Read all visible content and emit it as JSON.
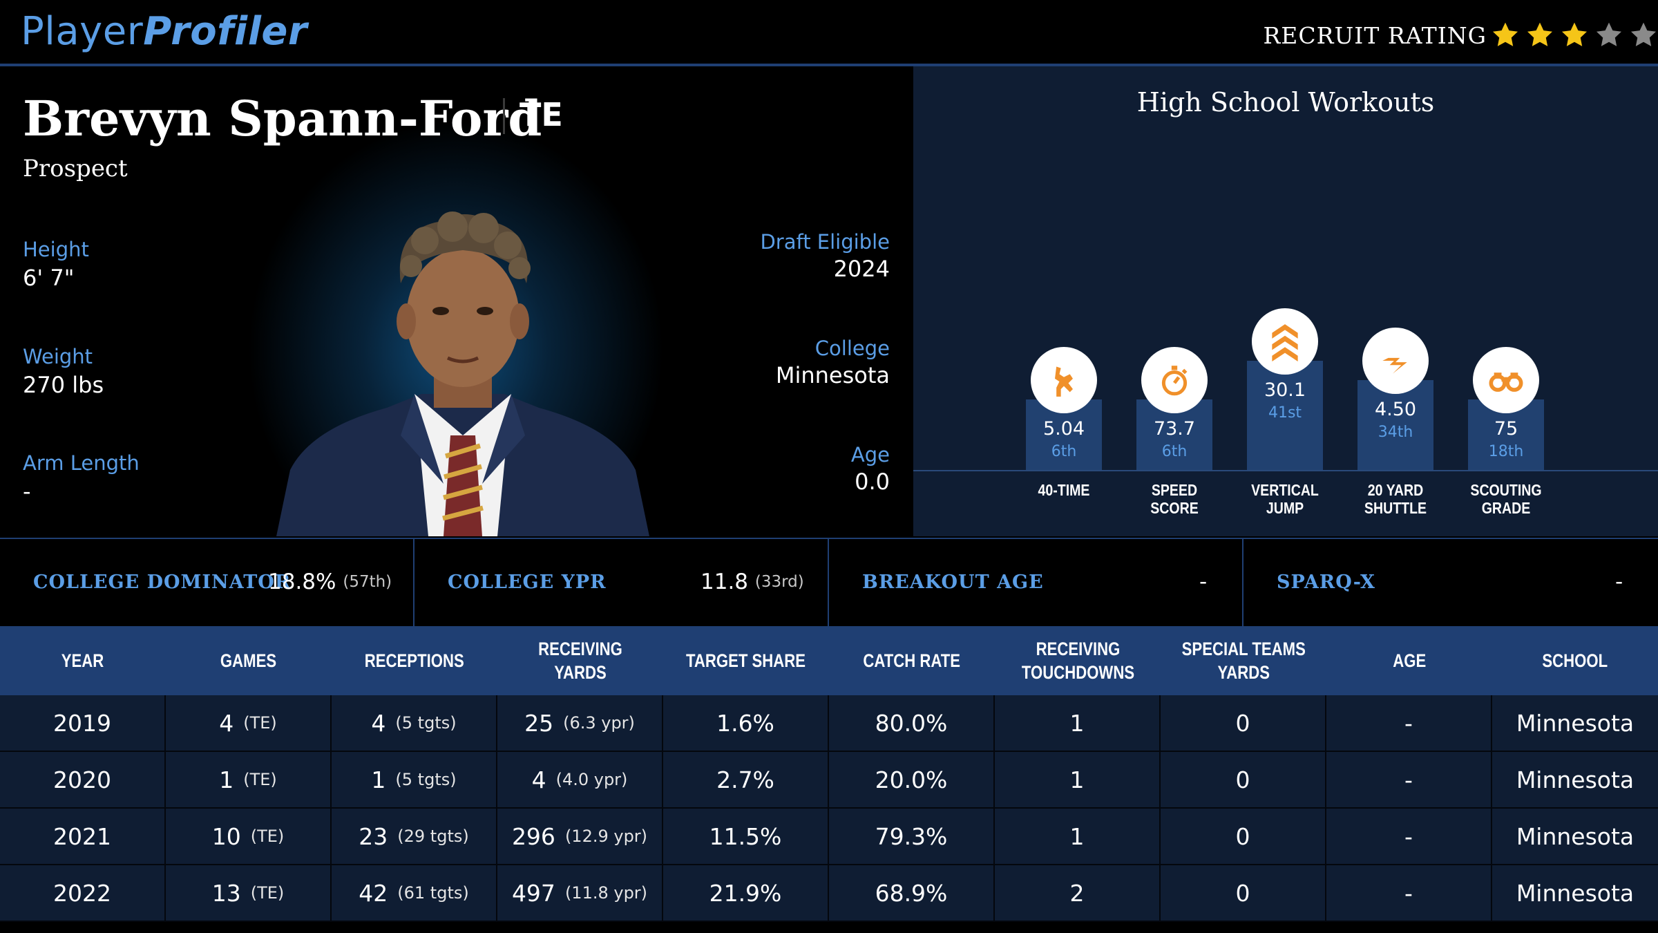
{
  "header": {
    "logo_part1": "Player",
    "logo_part2": "Profiler",
    "rating_label": "RECRUIT RATING",
    "stars_filled": 3,
    "stars_total": 5,
    "colors": {
      "star_on": "#f5c518",
      "star_off": "#8a8a8a",
      "accent": "#5b9ee6"
    }
  },
  "player": {
    "name": "Brevyn Spann-Ford",
    "position": "TE",
    "status": "Prospect",
    "height_label": "Height",
    "height": "6' 7\"",
    "weight_label": "Weight",
    "weight": "270 lbs",
    "arm_label": "Arm Length",
    "arm": "-",
    "draft_label": "Draft Eligible",
    "draft": "2024",
    "college_label": "College",
    "college": "Minnesota",
    "age_label": "Age",
    "age": "0.0"
  },
  "workouts": {
    "title": "High School Workouts",
    "items": [
      {
        "label1": "40-TIME",
        "label2": "",
        "value": "5.04",
        "rank": "6th",
        "icon": "running-shoe-icon"
      },
      {
        "label1": "SPEED",
        "label2": "SCORE",
        "value": "73.7",
        "rank": "6th",
        "icon": "stopwatch-icon"
      },
      {
        "label1": "VERTICAL",
        "label2": "JUMP",
        "value": "30.1",
        "rank": "41st",
        "icon": "chevrons-up-icon"
      },
      {
        "label1": "20 YARD",
        "label2": "SHUTTLE",
        "value": "4.50",
        "rank": "34th",
        "icon": "lightning-icon"
      },
      {
        "label1": "SCOUTING",
        "label2": "GRADE",
        "value": "75",
        "rank": "18th",
        "icon": "binoculars-icon"
      }
    ]
  },
  "metrics": [
    {
      "label": "COLLEGE DOMINATOR",
      "value": "18.8%",
      "rank": "(57th)"
    },
    {
      "label": "COLLEGE YPR",
      "value": "11.8",
      "rank": "(33rd)"
    },
    {
      "label": "BREAKOUT AGE",
      "value": "-",
      "rank": ""
    },
    {
      "label": "SPARQ-X",
      "value": "-",
      "rank": ""
    }
  ],
  "table": {
    "headers": [
      [
        "YEAR",
        ""
      ],
      [
        "GAMES",
        ""
      ],
      [
        "RECEPTIONS",
        ""
      ],
      [
        "RECEIVING YARDS",
        ""
      ],
      [
        "TARGET SHARE",
        ""
      ],
      [
        "CATCH RATE",
        ""
      ],
      [
        "RECEIVING",
        "TOUCHDOWNS"
      ],
      [
        "SPECIAL TEAMS",
        "YARDS"
      ],
      [
        "AGE",
        ""
      ],
      [
        "SCHOOL",
        ""
      ]
    ],
    "rows": [
      {
        "year": "2019",
        "games": "4",
        "games_note": "(TE)",
        "rec": "4",
        "rec_note": "(5 tgts)",
        "yds": "25",
        "yds_note": "(6.3 ypr)",
        "tshare": "1.6%",
        "catch": "80.0%",
        "td": "1",
        "st": "0",
        "age": "-",
        "school": "Minnesota"
      },
      {
        "year": "2020",
        "games": "1",
        "games_note": "(TE)",
        "rec": "1",
        "rec_note": "(5 tgts)",
        "yds": "4",
        "yds_note": "(4.0 ypr)",
        "tshare": "2.7%",
        "catch": "20.0%",
        "td": "1",
        "st": "0",
        "age": "-",
        "school": "Minnesota"
      },
      {
        "year": "2021",
        "games": "10",
        "games_note": "(TE)",
        "rec": "23",
        "rec_note": "(29 tgts)",
        "yds": "296",
        "yds_note": "(12.9 ypr)",
        "tshare": "11.5%",
        "catch": "79.3%",
        "td": "1",
        "st": "0",
        "age": "-",
        "school": "Minnesota"
      },
      {
        "year": "2022",
        "games": "13",
        "games_note": "(TE)",
        "rec": "42",
        "rec_note": "(61 tgts)",
        "yds": "497",
        "yds_note": "(11.8 ypr)",
        "tshare": "21.9%",
        "catch": "68.9%",
        "td": "2",
        "st": "0",
        "age": "-",
        "school": "Minnesota"
      }
    ]
  }
}
